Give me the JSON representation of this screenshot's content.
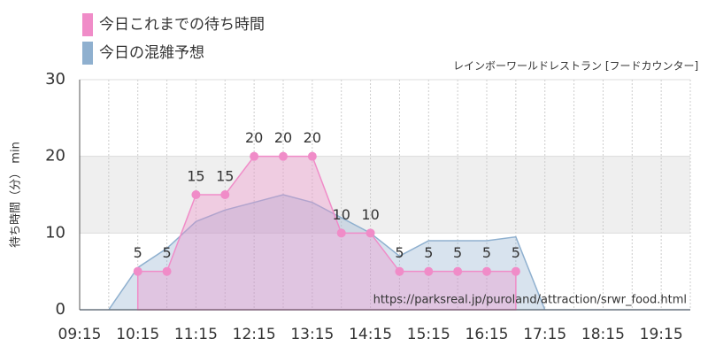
{
  "chart_data": {
    "type": "area",
    "subtitle": "レインボーワールドレストラン [フードカウンター]",
    "ylabel": "待ち時間（分） min",
    "watermark": "https://parksreal.jp/puroland/attraction/srwr_food.html",
    "x": [
      "09:15",
      "09:45",
      "10:15",
      "10:45",
      "11:15",
      "11:45",
      "12:15",
      "12:45",
      "13:15",
      "13:45",
      "14:15",
      "14:45",
      "15:15",
      "15:45",
      "16:15",
      "16:45",
      "17:15",
      "17:45",
      "18:15",
      "18:45",
      "19:15",
      "19:45"
    ],
    "xlim": [
      "09:15",
      "19:45"
    ],
    "xticks": [
      "09:15",
      "10:15",
      "11:15",
      "12:15",
      "13:15",
      "14:15",
      "15:15",
      "16:15",
      "17:15",
      "18:15",
      "19:15"
    ],
    "ylim": [
      0,
      30
    ],
    "yticks": [
      0,
      10,
      20,
      30
    ],
    "grid": true,
    "series": [
      {
        "name": "今日の混雑予想",
        "color": "#8fb0cf",
        "values": [
          0,
          0,
          5.5,
          8,
          11.5,
          13,
          14,
          15,
          14,
          12,
          10,
          7,
          9,
          9,
          9,
          9.5,
          0,
          0,
          0,
          0,
          0,
          0
        ]
      },
      {
        "name": "今日これまでの待ち時間",
        "color": "#f08cc8",
        "values": [
          null,
          null,
          5,
          5,
          15,
          15,
          20,
          20,
          20,
          10,
          10,
          5,
          5,
          5,
          5,
          5,
          null,
          null,
          null,
          null,
          null,
          null
        ]
      }
    ]
  }
}
